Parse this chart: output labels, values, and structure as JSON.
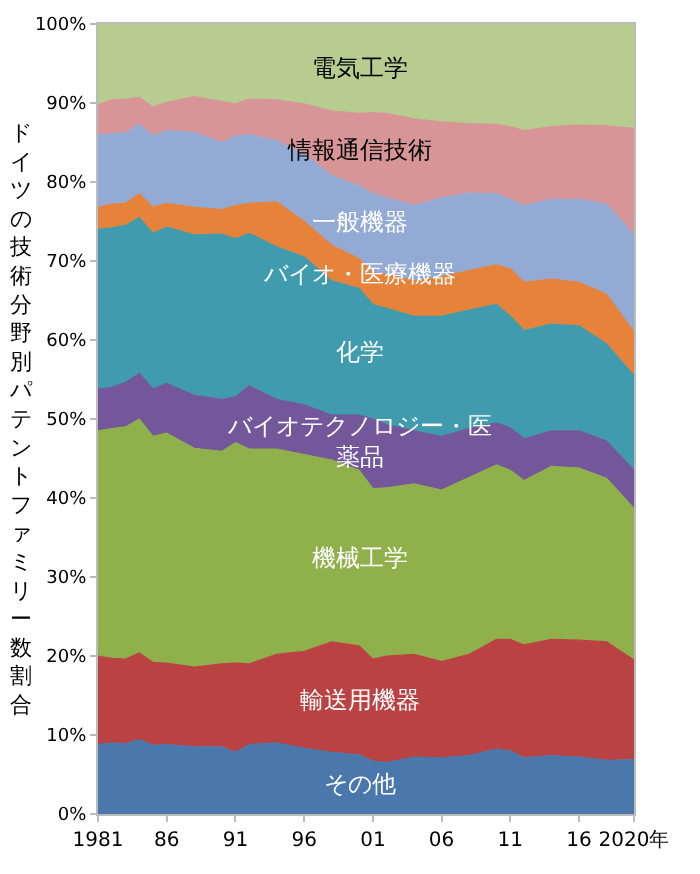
{
  "chart_data": {
    "type": "area",
    "stacked": true,
    "ylabel": "ドイツの技術分野別パテントファミリー数割合",
    "x": [
      1981,
      1982,
      1983,
      1984,
      1985,
      1986,
      1988,
      1990,
      1991,
      1992,
      1994,
      1996,
      1998,
      2000,
      2001,
      2002,
      2004,
      2006,
      2008,
      2010,
      2011,
      2012,
      2014,
      2016,
      2018,
      2020
    ],
    "series": [
      {
        "name": "その他",
        "color": "#4a78ad",
        "values": [
          8.8,
          9.0,
          8.9,
          9.4,
          8.7,
          8.8,
          8.5,
          8.5,
          7.8,
          8.8,
          9.0,
          8.3,
          7.8,
          7.5,
          6.7,
          6.5,
          7.2,
          7.1,
          7.4,
          8.2,
          8.0,
          7.1,
          7.4,
          7.2,
          6.8,
          6.9
        ]
      },
      {
        "name": "輸送用機器",
        "color": "#bb4242",
        "values": [
          11.2,
          10.7,
          10.7,
          11.0,
          10.5,
          10.3,
          10.1,
          10.5,
          11.3,
          10.2,
          11.2,
          12.3,
          14.0,
          13.8,
          12.9,
          13.5,
          13.0,
          12.2,
          12.8,
          13.9,
          14.1,
          14.3,
          14.7,
          14.8,
          15.0,
          12.6
        ]
      },
      {
        "name": "機械工学",
        "color": "#8fb04a",
        "values": [
          28.5,
          29.1,
          29.4,
          29.6,
          28.6,
          29.1,
          27.7,
          26.9,
          27.9,
          27.2,
          26.0,
          24.9,
          23.0,
          22.2,
          21.6,
          21.3,
          21.6,
          21.7,
          22.4,
          22.1,
          21.4,
          20.8,
          21.9,
          21.8,
          20.7,
          19.2
        ]
      },
      {
        "name": "バイオテクノロジー・医薬品",
        "color": "#73579a",
        "values": [
          5.3,
          5.2,
          5.6,
          5.8,
          6.0,
          6.3,
          6.7,
          6.6,
          5.8,
          8.0,
          6.3,
          6.3,
          5.7,
          7.0,
          8.8,
          8.0,
          6.7,
          6.8,
          6.2,
          5.3,
          5.4,
          5.3,
          4.5,
          4.7,
          4.7,
          4.8
        ]
      },
      {
        "name": "化学",
        "color": "#3f9bad",
        "values": [
          20.2,
          20.2,
          19.9,
          19.7,
          19.7,
          19.8,
          20.3,
          20.9,
          20.0,
          19.3,
          19.3,
          18.7,
          17.0,
          16.0,
          14.5,
          14.7,
          14.5,
          15.2,
          15.0,
          15.0,
          14.1,
          13.7,
          13.5,
          13.3,
          12.3,
          12.0
        ]
      },
      {
        "name": "バイオ・医療機器",
        "color": "#e6823a",
        "values": [
          2.8,
          3.0,
          2.8,
          3.0,
          3.3,
          3.0,
          3.5,
          3.1,
          4.2,
          3.8,
          5.7,
          4.5,
          4.5,
          3.8,
          4.0,
          4.3,
          4.5,
          5.0,
          5.0,
          5.0,
          6.0,
          6.1,
          5.7,
          5.5,
          6.3,
          5.5
        ]
      },
      {
        "name": "一般機器",
        "color": "#93abd4",
        "values": [
          9.2,
          8.9,
          8.9,
          8.8,
          9.0,
          9.2,
          9.5,
          8.5,
          8.8,
          8.7,
          7.7,
          8.5,
          8.8,
          9.2,
          10.0,
          9.7,
          9.5,
          10.0,
          9.8,
          9.0,
          8.8,
          9.7,
          10.1,
          10.5,
          11.4,
          12.3
        ]
      },
      {
        "name": "情報通信技術",
        "color": "#d89597",
        "values": [
          3.8,
          4.3,
          4.3,
          3.4,
          3.7,
          3.6,
          4.5,
          5.2,
          4.1,
          4.5,
          5.2,
          6.4,
          8.2,
          9.2,
          10.3,
          10.7,
          11.0,
          9.6,
          8.8,
          8.8,
          9.2,
          9.5,
          9.2,
          9.4,
          9.9,
          13.5
        ]
      },
      {
        "name": "電気工学",
        "color": "#b6cd8f",
        "values": [
          10.2,
          9.6,
          9.5,
          9.3,
          10.5,
          9.9,
          9.2,
          9.8,
          10.1,
          9.5,
          9.6,
          10.1,
          11.0,
          11.3,
          11.2,
          11.3,
          12.0,
          12.4,
          12.6,
          12.7,
          13.0,
          13.5,
          13.0,
          12.8,
          12.9,
          13.2
        ]
      }
    ],
    "xlim": [
      1981,
      2020
    ],
    "xticks": [
      1981,
      {
        "value": 1986,
        "label": "86"
      },
      {
        "value": 1991,
        "label": "91"
      },
      {
        "value": 1996,
        "label": "96"
      },
      {
        "value": 2001,
        "label": "01"
      },
      {
        "value": 2006,
        "label": "06"
      },
      {
        "value": 2011,
        "label": "11"
      },
      {
        "value": 2016,
        "label": "16"
      },
      {
        "value": 2020,
        "label": "2020年"
      }
    ],
    "ylim": [
      0,
      100
    ],
    "yticks": [
      {
        "value": 0,
        "label": "0%"
      },
      {
        "value": 10,
        "label": "10%"
      },
      {
        "value": 20,
        "label": "20%"
      },
      {
        "value": 30,
        "label": "30%"
      },
      {
        "value": 40,
        "label": "40%"
      },
      {
        "value": 50,
        "label": "50%"
      },
      {
        "value": 60,
        "label": "60%"
      },
      {
        "value": 70,
        "label": "70%"
      },
      {
        "value": 80,
        "label": "80%"
      },
      {
        "value": 90,
        "label": "90%"
      },
      {
        "value": 100,
        "label": "100%"
      }
    ],
    "legend": false
  }
}
